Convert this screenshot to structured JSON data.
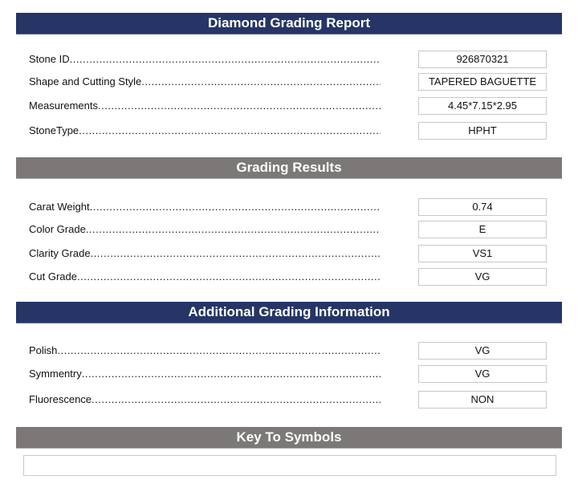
{
  "sections": {
    "report": {
      "title": "Diamond Grading Report",
      "color": "#263566"
    },
    "results": {
      "title": "Grading Results",
      "color": "#7b7877"
    },
    "additional": {
      "title": "Additional Grading Information",
      "color": "#263566"
    },
    "key": {
      "title": "Key To Symbols",
      "color": "#7b7877",
      "content": ""
    }
  },
  "report_rows": [
    {
      "label": "Stone ID",
      "value": "926870321"
    },
    {
      "label": "Shape and Cutting Style",
      "value": "TAPERED BAGUETTE"
    },
    {
      "label": "Measurements",
      "value": "4.45*7.15*2.95"
    },
    {
      "label": "StoneType",
      "value": "HPHT"
    }
  ],
  "results_rows": [
    {
      "label": "Carat Weight",
      "value": "0.74"
    },
    {
      "label": "Color Grade",
      "value": "E"
    },
    {
      "label": "Clarity Grade",
      "value": "VS1"
    },
    {
      "label": "Cut Grade",
      "value": "VG"
    }
  ],
  "additional_rows": [
    {
      "label": "Polish",
      "value": "VG"
    },
    {
      "label": "Symmentry",
      "value": "VG"
    },
    {
      "label": "Fluorescence",
      "value": "NON"
    }
  ]
}
